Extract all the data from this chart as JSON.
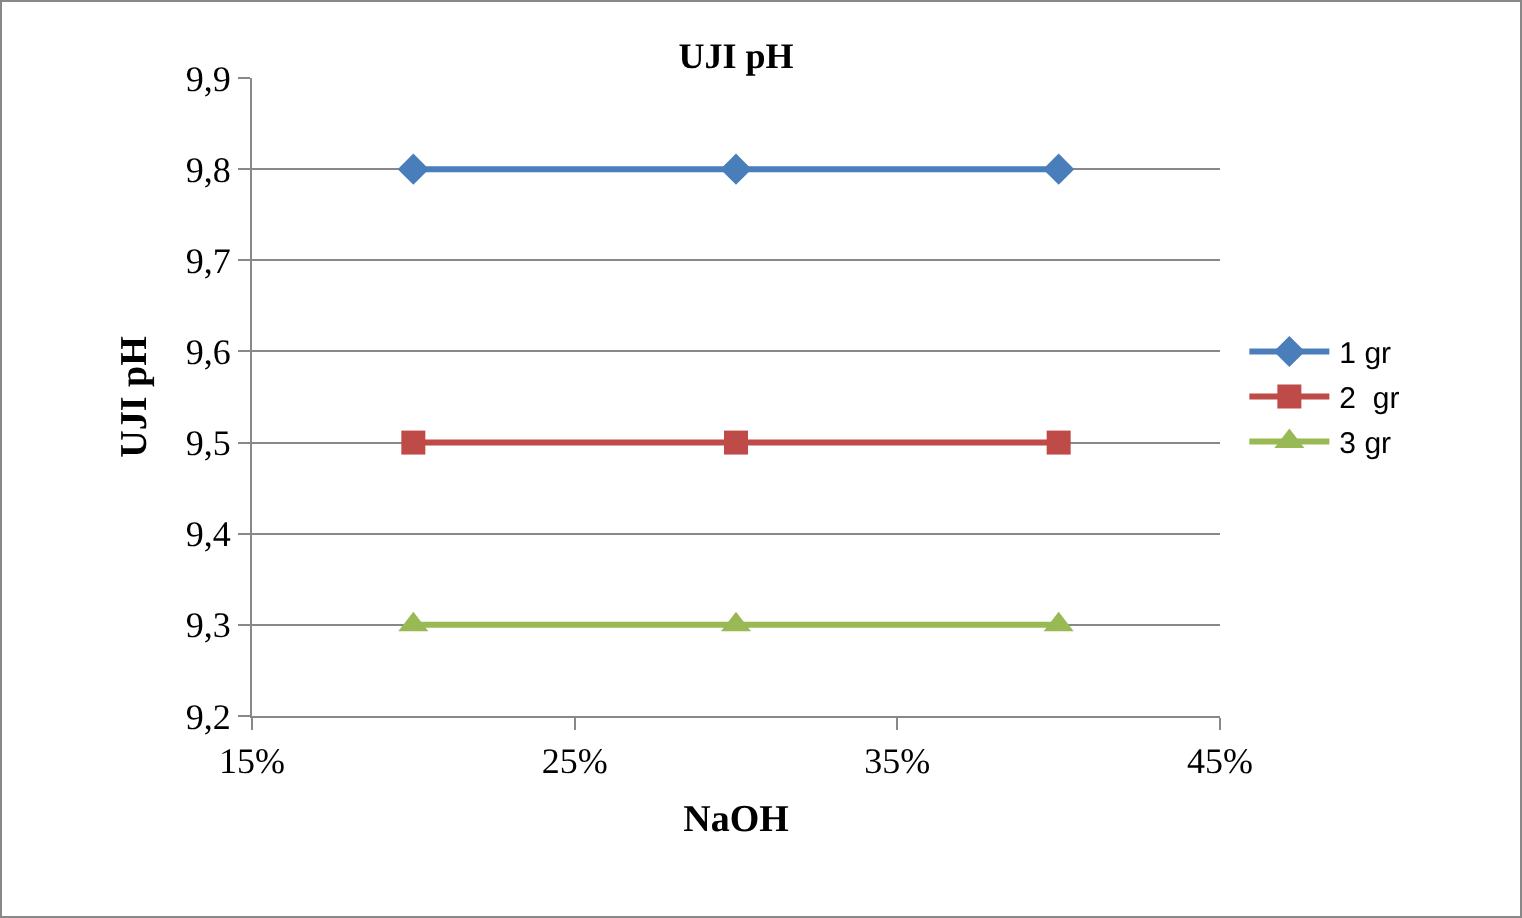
{
  "chart_data": {
    "type": "line",
    "title": "UJI pH",
    "xlabel": "NaOH",
    "ylabel": "UJI pH",
    "x": [
      0.2,
      0.3,
      0.4
    ],
    "series": [
      {
        "name": "1 gr",
        "color": "#4a7ebb",
        "values": [
          9.8,
          9.8,
          9.8
        ],
        "marker": "diamond"
      },
      {
        "name": "2  gr",
        "color": "#be4b48",
        "values": [
          9.5,
          9.5,
          9.5
        ],
        "marker": "square"
      },
      {
        "name": "3 gr",
        "color": "#98b954",
        "values": [
          9.3,
          9.3,
          9.3
        ],
        "marker": "triangle"
      }
    ],
    "xlim": [
      0.15,
      0.45
    ],
    "xticks": [
      {
        "value": 0.15,
        "label": "15%"
      },
      {
        "value": 0.25,
        "label": "25%"
      },
      {
        "value": 0.35,
        "label": "35%"
      },
      {
        "value": 0.45,
        "label": "45%"
      }
    ],
    "ylim": [
      9.2,
      9.9
    ],
    "yticks": [
      {
        "value": 9.2,
        "label": "9,2"
      },
      {
        "value": 9.3,
        "label": "9,3"
      },
      {
        "value": 9.4,
        "label": "9,4"
      },
      {
        "value": 9.5,
        "label": "9,5"
      },
      {
        "value": 9.6,
        "label": "9,6"
      },
      {
        "value": 9.7,
        "label": "9,7"
      },
      {
        "value": 9.8,
        "label": "9,8"
      },
      {
        "value": 9.9,
        "label": "9,9"
      }
    ],
    "grid": "y",
    "legend": "right",
    "line_style": "solid"
  }
}
